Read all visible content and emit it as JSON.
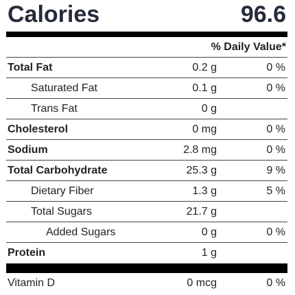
{
  "calories": {
    "label": "Calories",
    "value": "96.6"
  },
  "daily_value_header": "% Daily Value*",
  "nutrients": [
    {
      "name": "Total Fat",
      "amount": "0.2 g",
      "dv": "0 %",
      "bold": true,
      "indent": 0
    },
    {
      "name": "Saturated Fat",
      "amount": "0.1 g",
      "dv": "0 %",
      "bold": false,
      "indent": 1
    },
    {
      "name": "Trans Fat",
      "amount": "0 g",
      "dv": "",
      "bold": false,
      "indent": 1
    },
    {
      "name": "Cholesterol",
      "amount": "0 mg",
      "dv": "0 %",
      "bold": true,
      "indent": 0
    },
    {
      "name": "Sodium",
      "amount": "2.8 mg",
      "dv": "0 %",
      "bold": true,
      "indent": 0
    },
    {
      "name": "Total Carbohydrate",
      "amount": "25.3 g",
      "dv": "9 %",
      "bold": true,
      "indent": 0
    },
    {
      "name": "Dietary Fiber",
      "amount": "1.3 g",
      "dv": "5 %",
      "bold": false,
      "indent": 1
    },
    {
      "name": "Total Sugars",
      "amount": "21.7 g",
      "dv": "",
      "bold": false,
      "indent": 1
    },
    {
      "name": "Added Sugars",
      "amount": "0 g",
      "dv": "0 %",
      "bold": false,
      "indent": 2
    },
    {
      "name": "Protein",
      "amount": "1 g",
      "dv": "",
      "bold": true,
      "indent": 0
    }
  ],
  "vitamins": [
    {
      "name": "Vitamin D",
      "amount": "0 mcg",
      "dv": "0 %"
    }
  ]
}
